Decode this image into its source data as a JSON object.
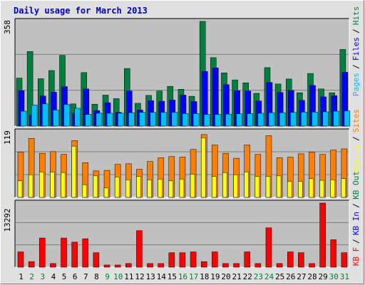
{
  "title": "Daily usage for March 2013",
  "colors": {
    "hits": "#008040",
    "files": "#0000ff",
    "pages": "#00c0ff",
    "visits": "#ffff00",
    "sites": "#ff8000",
    "kbin": "#0000ff",
    "kbout": "#008040",
    "kbf": "#ff0000",
    "weekend_label": "#008040",
    "weekday_label": "#000000",
    "panel_bg": "#c0c0c0"
  },
  "chart_data": [
    {
      "type": "bar",
      "title": "Daily usage for March 2013",
      "categories": [
        "1",
        "2",
        "3",
        "4",
        "5",
        "6",
        "7",
        "8",
        "9",
        "10",
        "11",
        "12",
        "13",
        "14",
        "15",
        "16",
        "17",
        "18",
        "19",
        "20",
        "21",
        "22",
        "23",
        "24",
        "25",
        "26",
        "27",
        "28",
        "29",
        "30",
        "31"
      ],
      "weekend_days": [
        "2",
        "3",
        "9",
        "10",
        "16",
        "17",
        "23",
        "24",
        "30",
        "31"
      ],
      "ylim": [
        0,
        358
      ],
      "max_tick_label": "358",
      "legend": [
        "Pages",
        "Files",
        "Hits"
      ],
      "legend_separator": "/",
      "series": [
        {
          "name": "Hits",
          "values": [
            164,
            255,
            162,
            190,
            242,
            76,
            183,
            75,
            106,
            94,
            197,
            78,
            105,
            120,
            136,
            126,
            102,
            358,
            234,
            182,
            158,
            148,
            112,
            200,
            144,
            161,
            114,
            180,
            127,
            114,
            262
          ]
        },
        {
          "name": "Files",
          "values": [
            121,
            37,
            103,
            116,
            135,
            44,
            127,
            53,
            80,
            47,
            120,
            55,
            87,
            85,
            89,
            106,
            84,
            187,
            199,
            142,
            121,
            120,
            86,
            149,
            115,
            122,
            88,
            139,
            100,
            104,
            184
          ]
        },
        {
          "name": "Pages",
          "values": [
            51,
            72,
            76,
            55,
            74,
            61,
            40,
            44,
            44,
            44,
            46,
            47,
            47,
            47,
            47,
            43,
            43,
            40,
            40,
            41,
            42,
            43,
            44,
            46,
            46,
            47,
            48,
            48,
            49,
            51,
            52
          ]
        }
      ]
    },
    {
      "type": "bar",
      "categories": [
        "1",
        "2",
        "3",
        "4",
        "5",
        "6",
        "7",
        "8",
        "9",
        "10",
        "11",
        "12",
        "13",
        "14",
        "15",
        "16",
        "17",
        "18",
        "19",
        "20",
        "21",
        "22",
        "23",
        "24",
        "25",
        "26",
        "27",
        "28",
        "29",
        "30",
        "31"
      ],
      "ylim": [
        0,
        119
      ],
      "max_tick_label": "119",
      "legend": [
        "Visits",
        "Sites"
      ],
      "legend_separator": "/",
      "series": [
        {
          "name": "Sites",
          "values": [
            82,
            107,
            80,
            83,
            78,
            103,
            63,
            48,
            49,
            60,
            61,
            51,
            65,
            72,
            74,
            73,
            87,
            114,
            95,
            80,
            71,
            95,
            78,
            112,
            72,
            73,
            79,
            82,
            78,
            86,
            88
          ]
        },
        {
          "name": "Visits",
          "values": [
            30,
            41,
            46,
            46,
            45,
            93,
            23,
            39,
            17,
            37,
            32,
            38,
            32,
            33,
            30,
            33,
            42,
            108,
            38,
            45,
            41,
            46,
            38,
            38,
            39,
            29,
            29,
            34,
            31,
            32,
            34
          ]
        }
      ]
    },
    {
      "type": "bar",
      "categories": [
        "1",
        "2",
        "3",
        "4",
        "5",
        "6",
        "7",
        "8",
        "9",
        "10",
        "11",
        "12",
        "13",
        "14",
        "15",
        "16",
        "17",
        "18",
        "19",
        "20",
        "21",
        "22",
        "23",
        "24",
        "25",
        "26",
        "27",
        "28",
        "29",
        "30",
        "31"
      ],
      "ylim": [
        0,
        13292
      ],
      "max_tick_label": "13292",
      "legend": [
        "KB F",
        "KB In",
        "KB Out"
      ],
      "legend_separator": "/",
      "series": [
        {
          "name": "KB F",
          "values": [
            3173,
            1152,
            6047,
            755,
            6047,
            5192,
            5897,
            3009,
            456,
            456,
            755,
            7583,
            755,
            755,
            3009,
            3009,
            3173,
            1152,
            3173,
            755,
            755,
            3173,
            755,
            8165,
            755,
            3173,
            3009,
            755,
            13292,
            5692,
            3009
          ]
        },
        {
          "name": "KB In",
          "values": [
            0,
            0,
            0,
            0,
            0,
            0,
            0,
            0,
            0,
            0,
            0,
            0,
            0,
            0,
            0,
            0,
            0,
            0,
            0,
            0,
            0,
            0,
            0,
            0,
            0,
            0,
            0,
            0,
            0,
            0,
            0
          ]
        },
        {
          "name": "KB Out",
          "values": [
            0,
            0,
            0,
            0,
            0,
            0,
            0,
            0,
            0,
            0,
            0,
            0,
            0,
            0,
            0,
            0,
            0,
            0,
            0,
            0,
            0,
            0,
            0,
            0,
            0,
            0,
            0,
            0,
            0,
            0,
            0
          ]
        }
      ]
    }
  ]
}
